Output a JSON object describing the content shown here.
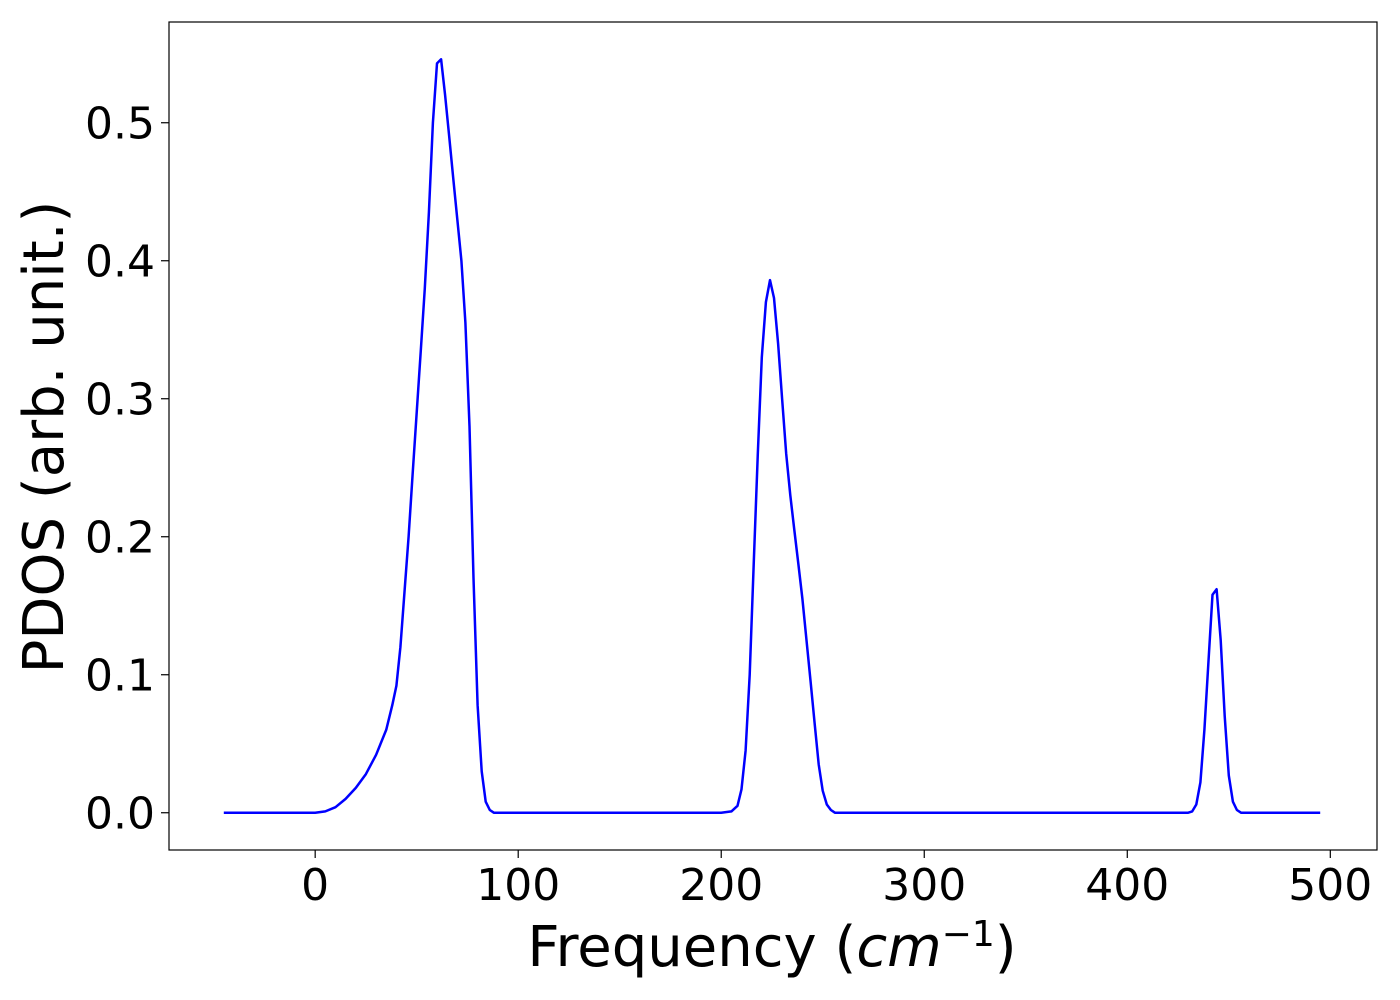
{
  "chart_data": {
    "type": "line",
    "title": "",
    "xlabel_prefix": "Frequency (",
    "xlabel_math": "cm",
    "xlabel_superscript": "−1",
    "xlabel_suffix": ")",
    "ylabel": "PDOS (arb. unit.)",
    "xlim": [
      -72,
      523
    ],
    "ylim": [
      -0.027,
      0.573
    ],
    "xticks": [
      0,
      100,
      200,
      300,
      400,
      500
    ],
    "xtick_labels": [
      "0",
      "100",
      "200",
      "300",
      "400",
      "500"
    ],
    "yticks": [
      0.0,
      0.1,
      0.2,
      0.3,
      0.4,
      0.5
    ],
    "ytick_labels": [
      "0.0",
      "0.1",
      "0.2",
      "0.3",
      "0.4",
      "0.5"
    ],
    "grid": false,
    "series": [
      {
        "color": "#0000ff",
        "x": [
          -45,
          0,
          5,
          10,
          15,
          20,
          25,
          30,
          35,
          38,
          40,
          42,
          44,
          46,
          48,
          50,
          52,
          54,
          56,
          58,
          60,
          62,
          64,
          66,
          68,
          70,
          72,
          74,
          76,
          78,
          80,
          82,
          84,
          86,
          88,
          90,
          92,
          94,
          96,
          98,
          100,
          105,
          200,
          205,
          208,
          210,
          212,
          214,
          216,
          218,
          220,
          222,
          224,
          226,
          228,
          230,
          232,
          234,
          236,
          238,
          240,
          242,
          244,
          246,
          248,
          250,
          252,
          254,
          256,
          258,
          260,
          262,
          264,
          266,
          270,
          430,
          432,
          434,
          436,
          438,
          440,
          442,
          444,
          446,
          448,
          450,
          452,
          454,
          456,
          458,
          460,
          464,
          495
        ],
        "y": [
          0.0,
          0.0,
          0.001,
          0.004,
          0.01,
          0.018,
          0.028,
          0.042,
          0.06,
          0.078,
          0.092,
          0.12,
          0.16,
          0.2,
          0.245,
          0.29,
          0.335,
          0.38,
          0.435,
          0.5,
          0.543,
          0.546,
          0.52,
          0.49,
          0.46,
          0.43,
          0.4,
          0.355,
          0.28,
          0.17,
          0.078,
          0.03,
          0.008,
          0.002,
          0.0,
          0.0,
          0.0,
          0.0,
          0.0,
          0.0,
          0.0,
          0.0,
          0.0,
          0.001,
          0.005,
          0.017,
          0.045,
          0.1,
          0.18,
          0.26,
          0.33,
          0.37,
          0.386,
          0.373,
          0.34,
          0.3,
          0.26,
          0.23,
          0.205,
          0.18,
          0.155,
          0.125,
          0.095,
          0.065,
          0.035,
          0.016,
          0.006,
          0.002,
          0.0,
          0.0,
          0.0,
          0.0,
          0.0,
          0.0,
          0.0,
          0.0,
          0.001,
          0.006,
          0.022,
          0.06,
          0.11,
          0.158,
          0.162,
          0.125,
          0.07,
          0.027,
          0.008,
          0.002,
          0.0,
          0.0,
          0.0,
          0.0,
          0.0
        ]
      }
    ]
  }
}
